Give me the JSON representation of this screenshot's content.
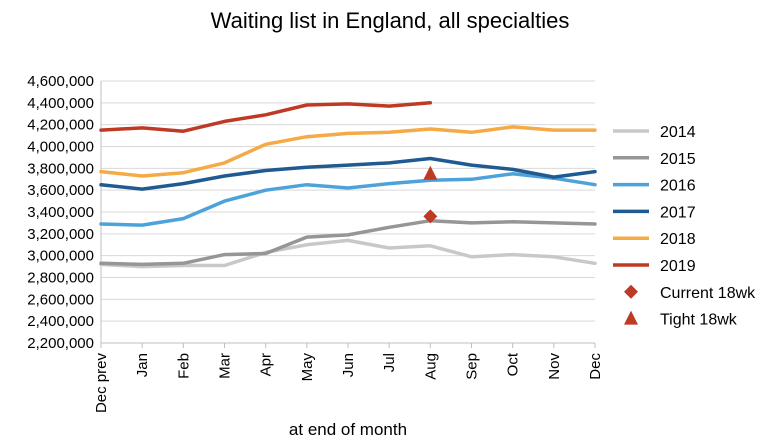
{
  "chart_data": {
    "type": "line",
    "title": "Waiting list in England, all specialties",
    "xlabel": "at end of month",
    "ylabel": "",
    "categories": [
      "Dec prev",
      "Jan",
      "Feb",
      "Mar",
      "Apr",
      "May",
      "Jun",
      "Jul",
      "Aug",
      "Sep",
      "Oct",
      "Nov",
      "Dec"
    ],
    "ylim": [
      2200000,
      4600000
    ],
    "yticks": [
      2200000,
      2400000,
      2600000,
      2800000,
      3000000,
      3200000,
      3400000,
      3600000,
      3800000,
      4000000,
      4200000,
      4400000,
      4600000
    ],
    "ytick_labels": [
      "2,200,000",
      "2,400,000",
      "2,600,000",
      "2,800,000",
      "3,000,000",
      "3,200,000",
      "3,400,000",
      "3,600,000",
      "3,800,000",
      "4,000,000",
      "4,200,000",
      "4,400,000",
      "4,600,000"
    ],
    "grid": true,
    "legend_position": "right",
    "series": [
      {
        "name": "2014",
        "color": "#c8c8c8",
        "values": [
          2920000,
          2900000,
          2910000,
          2910000,
          3030000,
          3100000,
          3140000,
          3070000,
          3090000,
          2990000,
          3010000,
          2990000,
          2930000
        ]
      },
      {
        "name": "2015",
        "color": "#969696",
        "values": [
          2930000,
          2920000,
          2930000,
          3010000,
          3020000,
          3170000,
          3190000,
          3260000,
          3320000,
          3300000,
          3310000,
          3300000,
          3290000
        ]
      },
      {
        "name": "2016",
        "color": "#4da3d9",
        "values": [
          3290000,
          3280000,
          3340000,
          3500000,
          3600000,
          3650000,
          3620000,
          3660000,
          3690000,
          3700000,
          3750000,
          3710000,
          3650000
        ]
      },
      {
        "name": "2017",
        "color": "#1f5a91",
        "values": [
          3650000,
          3610000,
          3660000,
          3730000,
          3780000,
          3810000,
          3830000,
          3850000,
          3890000,
          3830000,
          3790000,
          3720000,
          3770000
        ]
      },
      {
        "name": "2018",
        "color": "#f5aa45",
        "values": [
          3770000,
          3730000,
          3760000,
          3850000,
          4020000,
          4090000,
          4120000,
          4130000,
          4160000,
          4130000,
          4180000,
          4150000,
          4150000
        ]
      },
      {
        "name": "2019",
        "color": "#be3a25",
        "values": [
          4150000,
          4170000,
          4140000,
          4230000,
          4290000,
          4380000,
          4390000,
          4370000,
          4400000,
          null,
          null,
          null,
          null
        ]
      }
    ],
    "markers": [
      {
        "name": "Current 18wk",
        "shape": "diamond",
        "color": "#be3a25",
        "category": "Aug",
        "value": 3360000
      },
      {
        "name": "Tight 18wk",
        "shape": "triangle",
        "color": "#be3a25",
        "category": "Aug",
        "value": 3750000
      }
    ]
  }
}
